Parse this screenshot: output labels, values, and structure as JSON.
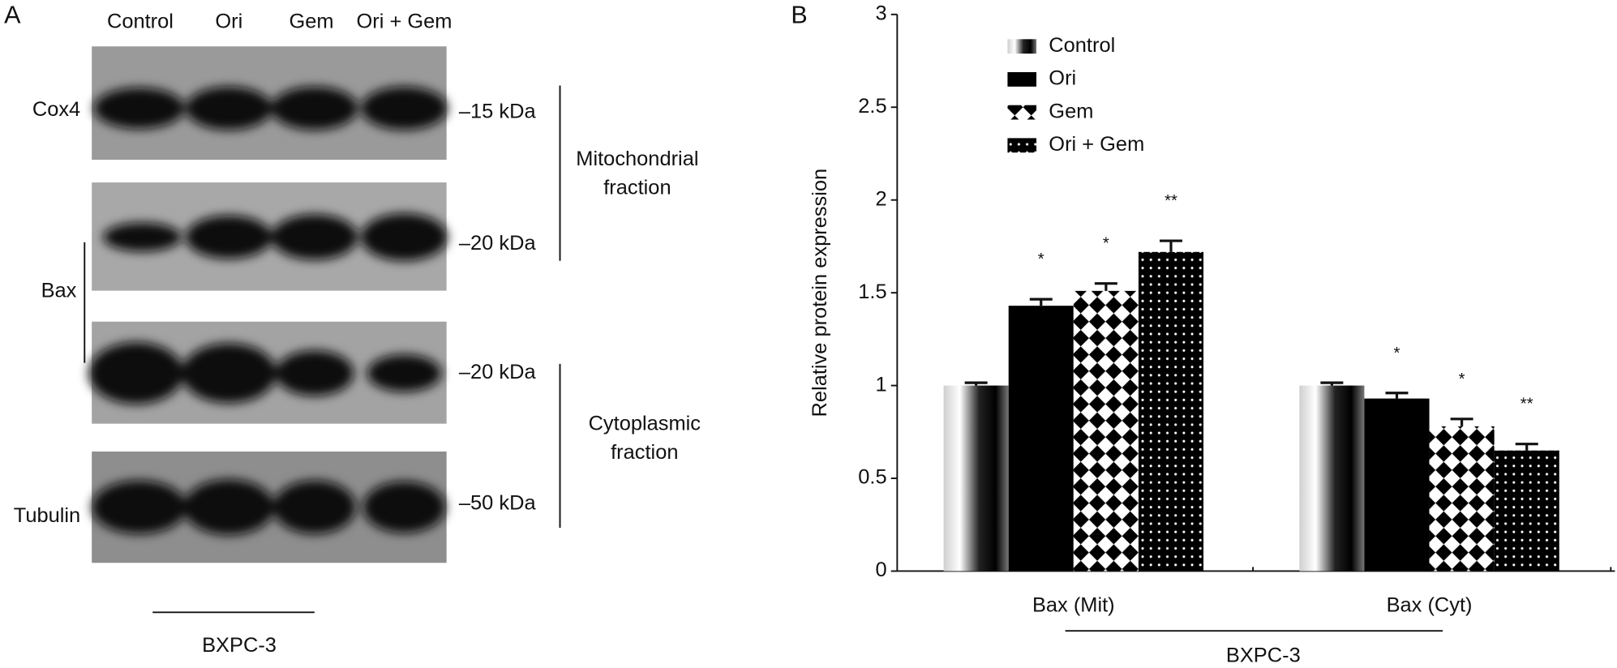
{
  "panel_a": {
    "label": "A",
    "lanes": [
      "Control",
      "Ori",
      "Gem",
      "Ori + Gem"
    ],
    "rows": [
      "Cox4",
      "Bax",
      "Tubulin"
    ],
    "markers": [
      "–15 kDa",
      "–20 kDa",
      "–20 kDa",
      "–50 kDa"
    ],
    "fractions": [
      [
        "Mitochondrial",
        "fraction"
      ],
      [
        "Cytoplasmic",
        "fraction"
      ]
    ],
    "cell_line": "BXPC-3"
  },
  "chart_data": {
    "type": "bar",
    "panel_label": "B",
    "y_label": "Relative protein expression",
    "group_label": "BXPC-3",
    "categories": [
      "Bax (Mit)",
      "Bax (Cyt)"
    ],
    "series": [
      {
        "name": "Control",
        "color": "#000000",
        "fill": "gradient",
        "values": [
          1.0,
          1.0
        ],
        "errors": [
          0.015,
          0.015
        ]
      },
      {
        "name": "Ori",
        "color": "#000000",
        "fill": "solid",
        "values": [
          1.43,
          0.93
        ],
        "errors": [
          0.035,
          0.03
        ],
        "significance": [
          "*",
          "*"
        ]
      },
      {
        "name": "Gem",
        "color": "#000000",
        "fill": "diamond",
        "values": [
          1.51,
          0.78
        ],
        "errors": [
          0.04,
          0.04
        ],
        "significance": [
          "*",
          "*"
        ]
      },
      {
        "name": "Ori + Gem",
        "color": "#000000",
        "fill": "dots",
        "values": [
          1.72,
          0.65
        ],
        "errors": [
          0.06,
          0.035
        ],
        "significance": [
          "**",
          "**"
        ]
      }
    ],
    "ylim": [
      0,
      3
    ],
    "yticks": [
      0,
      0.5,
      1,
      1.5,
      2,
      2.5,
      3
    ],
    "legend": "upper left",
    "grid": false
  }
}
